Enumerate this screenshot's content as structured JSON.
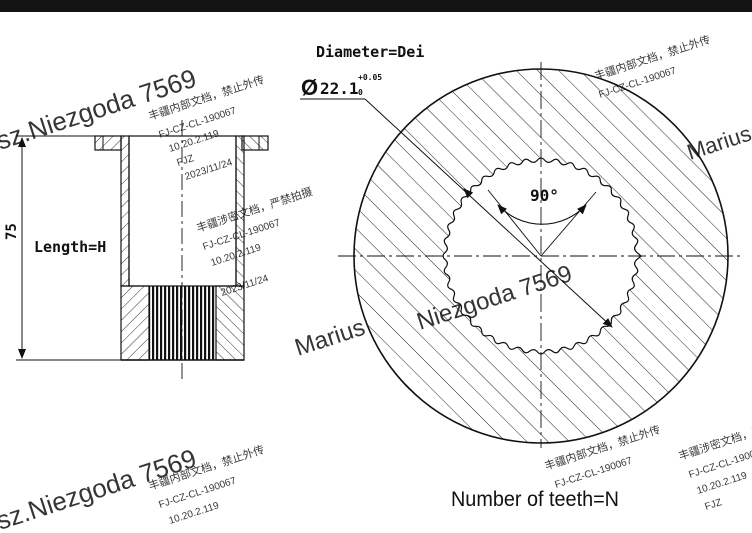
{
  "top_bar": {
    "color": "#141414"
  },
  "drawing": {
    "labels": {
      "diameter_title": "Diameter=Dei",
      "diameter_symbol": "Ø",
      "diameter_value": "22.1",
      "tolerance_upper": "+0.05",
      "tolerance_lower": "0",
      "angle": "90°",
      "length_label": "Length=H",
      "length_value": "75",
      "teeth_label": "Number of teeth=N"
    },
    "watermarks": [
      "Marius",
      "Niezgoda 7569",
      "sz.Niezgoda 7569",
      "丰疆内部文档，禁止外传",
      "FJ-CZ-CL-190067",
      "10.20.2.119",
      "FJZ",
      "2023/11/24",
      "丰疆涉密文档，严禁拍摄"
    ],
    "colors": {
      "line": "#111111",
      "hatch": "#333333",
      "watermark": "#c9c9c9"
    }
  }
}
